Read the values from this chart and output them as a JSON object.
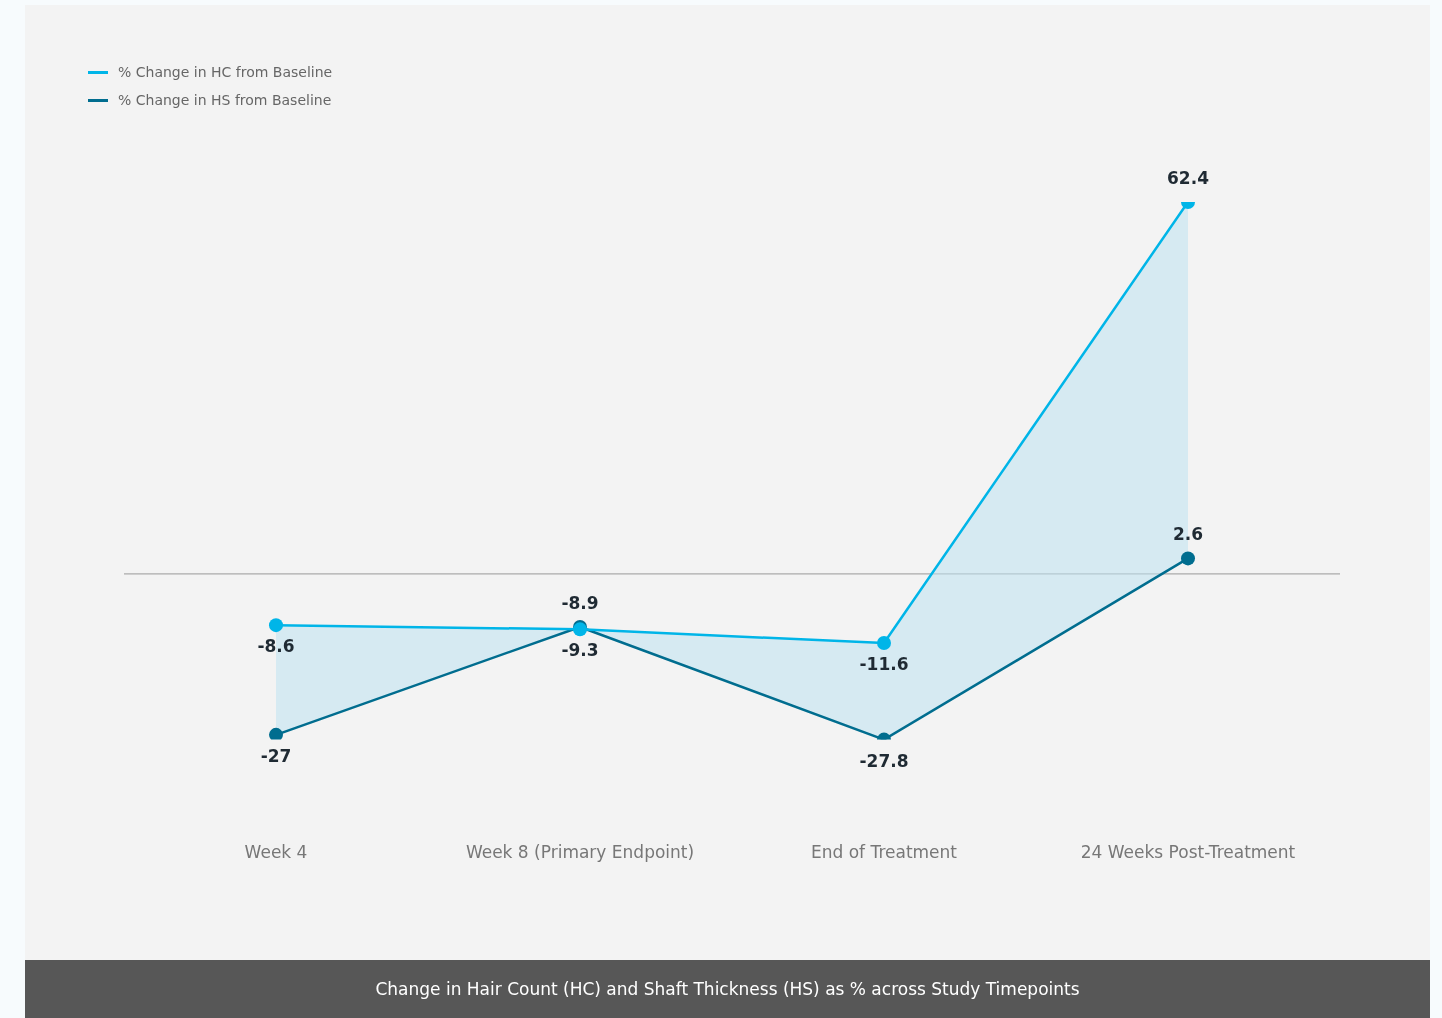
{
  "chart_data": {
    "type": "line",
    "categories": [
      "Week 4",
      "Week 8 (Primary Endpoint)",
      "End of Treatment",
      "24 Weeks Post-Treatment"
    ],
    "series": [
      {
        "name": "% Change in HC from Baseline",
        "color": "#00b5e8",
        "values": [
          -8.6,
          -9.3,
          -11.6,
          62.4
        ],
        "lower": [
          -27,
          -8.9,
          -27.8,
          2.6
        ],
        "upper": [
          -8.6,
          -9.3,
          -11.6,
          62.4
        ]
      },
      {
        "name": "% Change in HS from Baseline",
        "color": "#006d8f",
        "values": [
          -27,
          -8.9,
          -27.8,
          2.6
        ]
      }
    ],
    "ref_lines": [
      {
        "axis": "y",
        "value": 0,
        "color": "#999999"
      }
    ],
    "data_labels": true,
    "legend": "top left",
    "grid": false,
    "marker": "circle",
    "line_style": "solid",
    "tick_labels": "x",
    "annotations": [
      "Change in Hair Count (HC) and Shaft Thickness (HS) as % across Study Timepoints"
    ]
  }
}
